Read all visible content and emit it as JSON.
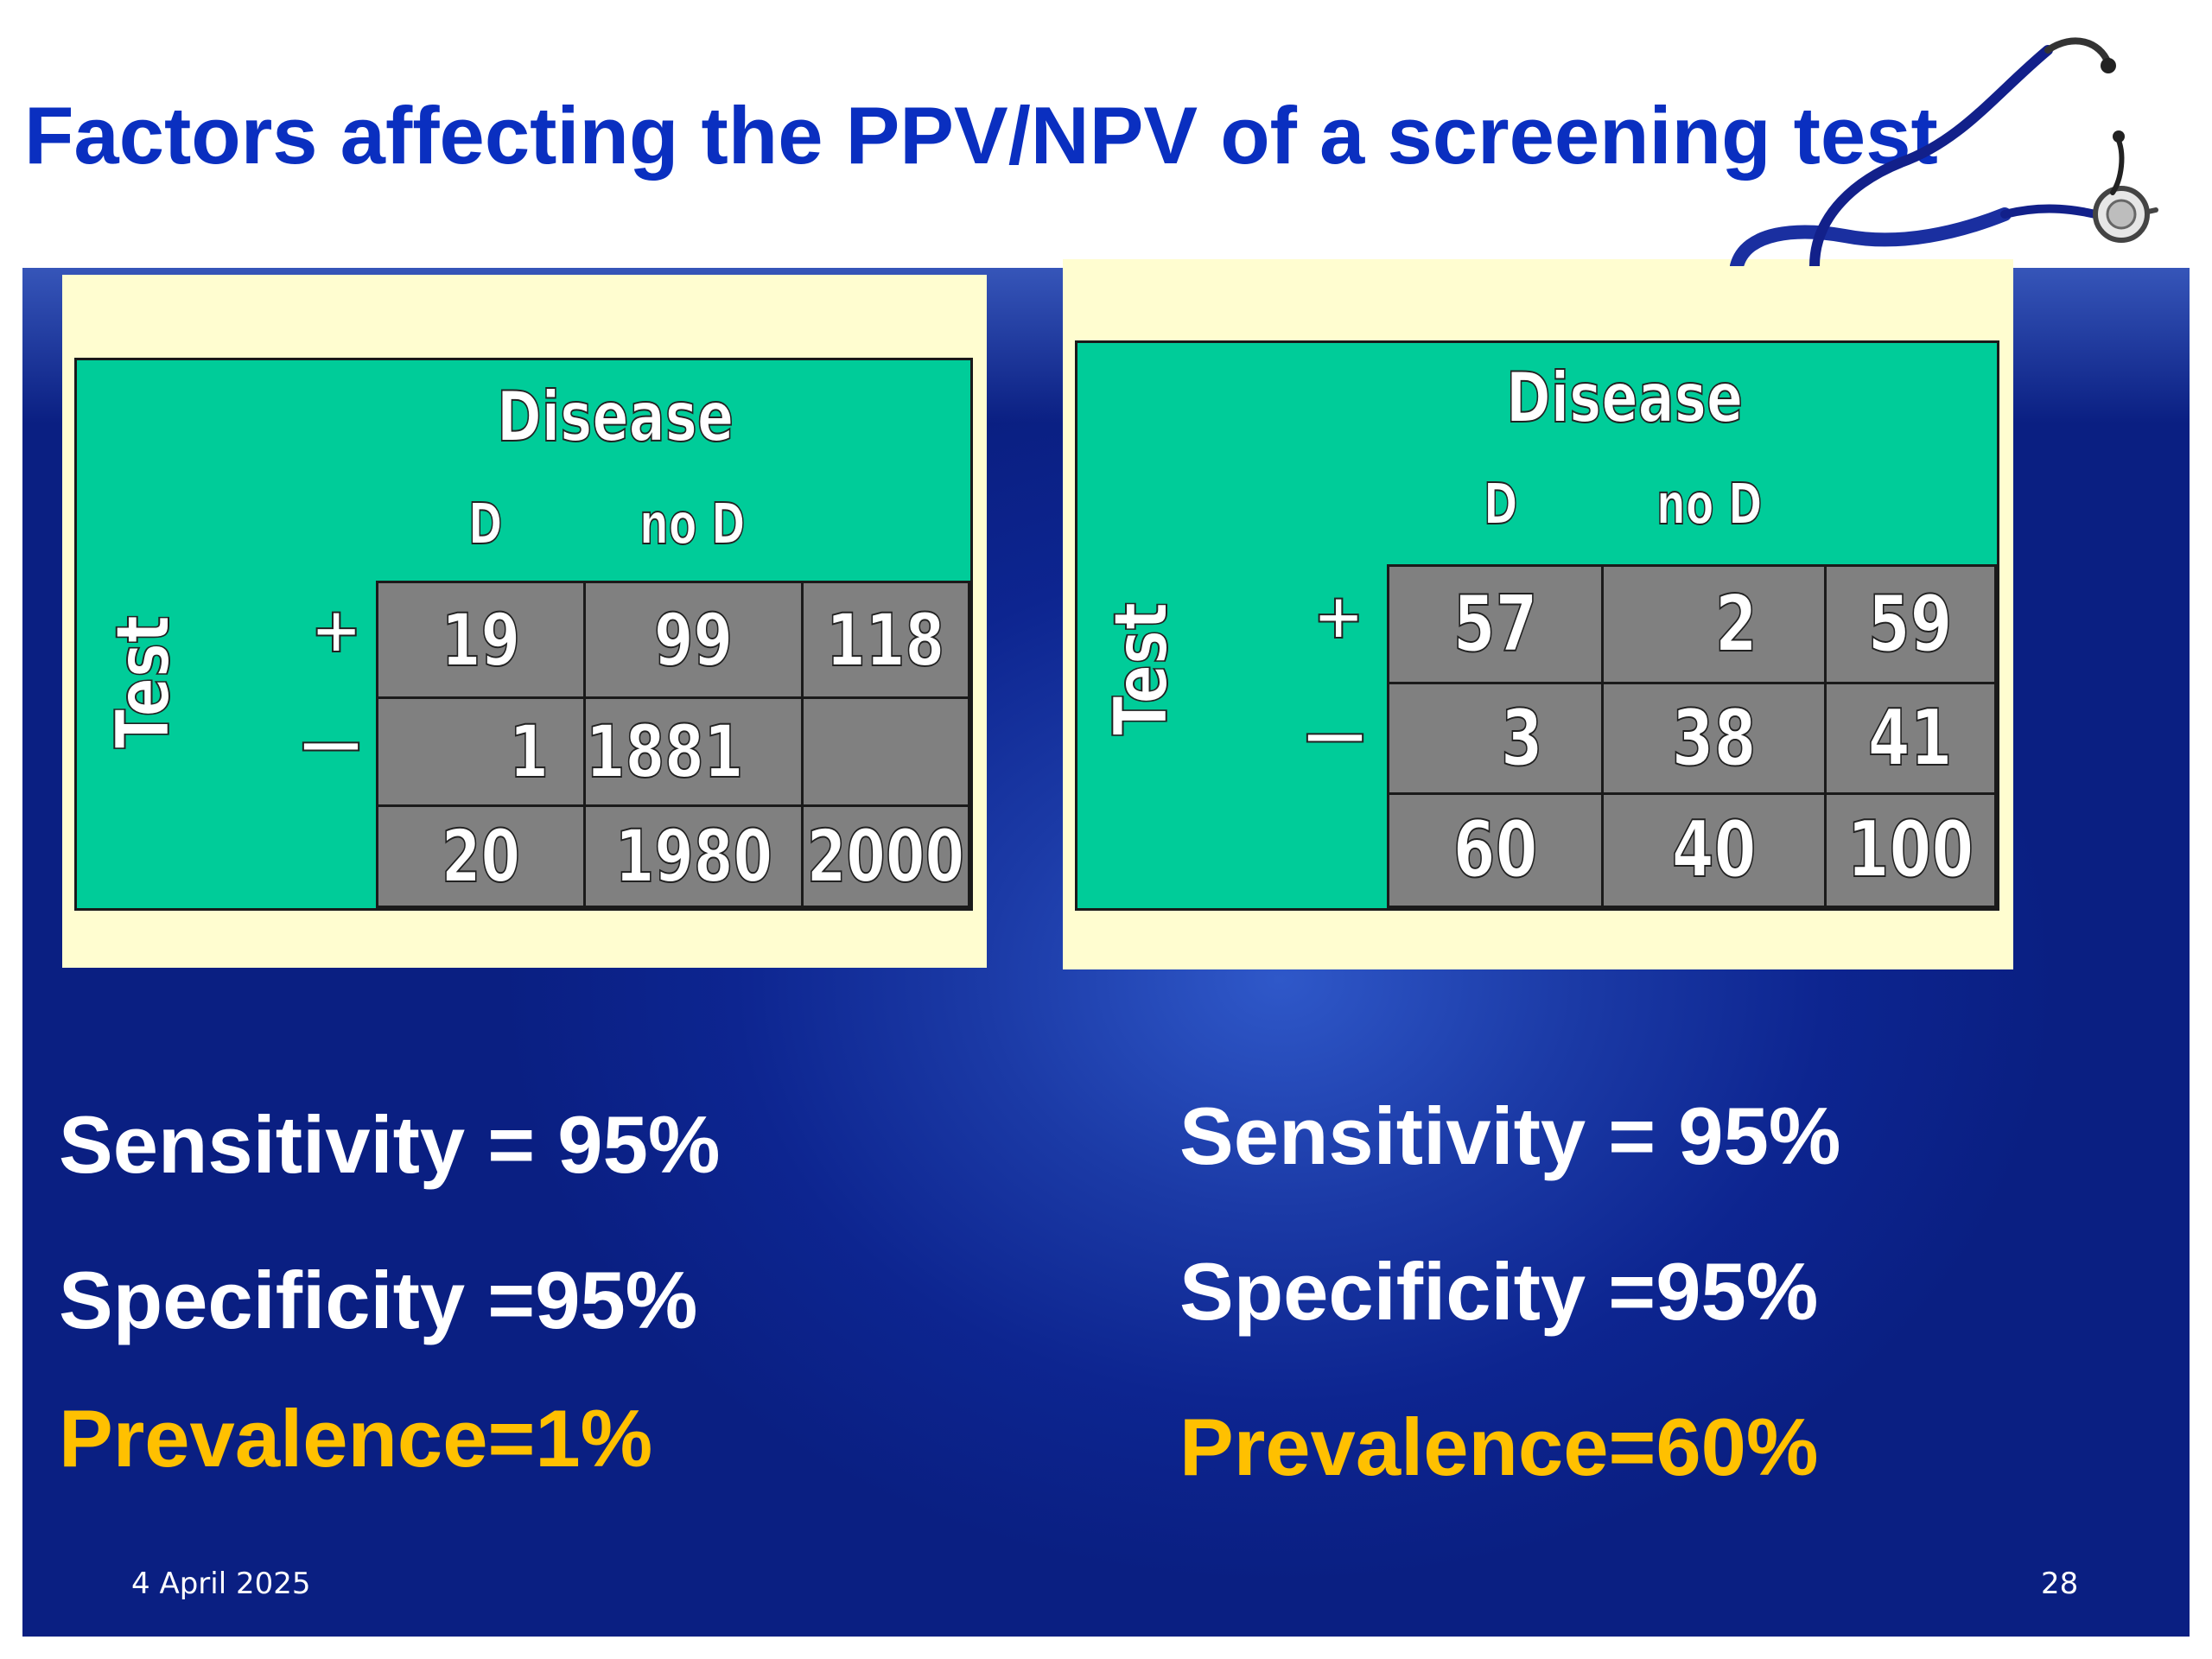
{
  "slide": {
    "title": "Factors affecting the PPV/NPV of a screening test",
    "date": "4 April 2025",
    "page_number": "28"
  },
  "tables": [
    {
      "disease_label": "Disease",
      "col_d": "D",
      "col_no_d": "no D",
      "test_label": "Test",
      "row_pos": "+",
      "row_neg": "—",
      "cells": [
        [
          "19",
          "99",
          "118"
        ],
        [
          "1",
          "1881",
          ""
        ],
        [
          "20",
          "1980",
          "2000"
        ]
      ]
    },
    {
      "disease_label": "Disease",
      "col_d": "D",
      "col_no_d": "no D",
      "test_label": "Test",
      "row_pos": "+",
      "row_neg": "—",
      "cells": [
        [
          "57",
          "2",
          "59"
        ],
        [
          "3",
          "38",
          "41"
        ],
        [
          "60",
          "40",
          "100"
        ]
      ]
    }
  ],
  "stats": [
    {
      "sensitivity": "Sensitivity = 95%",
      "specificity": "Specificity =95%",
      "prevalence": "Prevalence=1%"
    },
    {
      "sensitivity": "Sensitivity = 95%",
      "specificity": "Specificity =95%",
      "prevalence": "Prevalence=60%"
    }
  ],
  "colors": {
    "title": "#0a2fc0",
    "panel": "#0d2590",
    "card": "#fffdd0",
    "table_header": "#00cc99",
    "table_cells": "#808080",
    "prevalence": "#ffc000"
  },
  "icons": {
    "decoration": "stethoscope-icon"
  }
}
